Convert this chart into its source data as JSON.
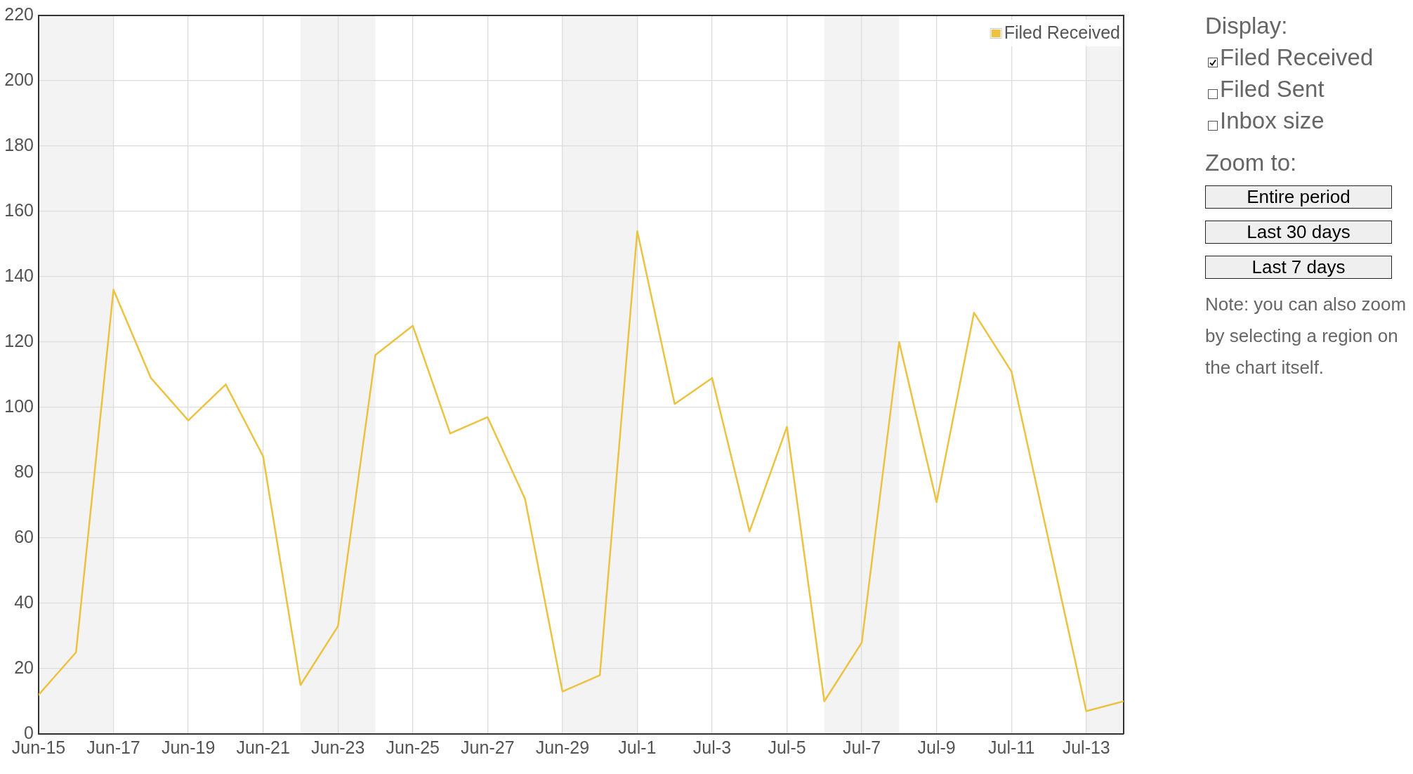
{
  "chart_data": [
    {
      "type": "line",
      "x": [
        "--06-15",
        "--06-16",
        "--06-17",
        "--06-18",
        "--06-19",
        "--06-20",
        "--06-21",
        "--06-22",
        "--06-23",
        "--06-24",
        "--06-25",
        "--06-26",
        "--06-27",
        "--06-28",
        "--06-29",
        "--06-30",
        "--07-01",
        "--07-02",
        "--07-03",
        "--07-04",
        "--07-05",
        "--07-06",
        "--07-07",
        "--07-08",
        "--07-09",
        "--07-10",
        "--07-11",
        "--07-12",
        "--07-13",
        "--07-14"
      ],
      "series": [
        {
          "name": "Filed Received",
          "color": "#edc240",
          "values": [
            12,
            25,
            136,
            109,
            96,
            107,
            85,
            15,
            33,
            116,
            125,
            92,
            97,
            72,
            13,
            18,
            154,
            101,
            109,
            62,
            94,
            10,
            28,
            120,
            71,
            129,
            111,
            59,
            7,
            10
          ]
        }
      ],
      "xlim": [
        "--06-15",
        "--07-14"
      ],
      "xticks": [
        {
          "value": "--06-15",
          "label": "Jun-15"
        },
        {
          "value": "--06-17",
          "label": "Jun-17"
        },
        {
          "value": "--06-19",
          "label": "Jun-19"
        },
        {
          "value": "--06-21",
          "label": "Jun-21"
        },
        {
          "value": "--06-23",
          "label": "Jun-23"
        },
        {
          "value": "--06-25",
          "label": "Jun-25"
        },
        {
          "value": "--06-27",
          "label": "Jun-27"
        },
        {
          "value": "--06-29",
          "label": "Jun-29"
        },
        {
          "value": "--07-01",
          "label": "Jul-1"
        },
        {
          "value": "--07-03",
          "label": "Jul-3"
        },
        {
          "value": "--07-05",
          "label": "Jul-5"
        },
        {
          "value": "--07-07",
          "label": "Jul-7"
        },
        {
          "value": "--07-09",
          "label": "Jul-9"
        },
        {
          "value": "--07-11",
          "label": "Jul-11"
        },
        {
          "value": "--07-13",
          "label": "Jul-13"
        }
      ],
      "ylim": [
        0,
        220
      ],
      "yticks": [
        0,
        20,
        40,
        60,
        80,
        100,
        120,
        140,
        160,
        180,
        200,
        220
      ],
      "grid": true,
      "legend": "top right",
      "line_style": "solid",
      "bands": [
        {
          "axis": "x",
          "from": "--06-15",
          "to": "--06-17",
          "color": "#f3f3f3"
        },
        {
          "axis": "x",
          "from": "--06-22",
          "to": "--06-24",
          "color": "#f3f3f3"
        },
        {
          "axis": "x",
          "from": "--06-29",
          "to": "--07-01",
          "color": "#f3f3f3"
        },
        {
          "axis": "x",
          "from": "--07-06",
          "to": "--07-08",
          "color": "#f3f3f3"
        },
        {
          "axis": "x",
          "from": "--07-13",
          "to": "--07-14",
          "color": "#f3f3f3"
        }
      ]
    },
    {
      "type": "other",
      "annotations": [
        "Display:",
        "Filed Received",
        "Filed Sent",
        "Inbox size",
        "Zoom to:",
        "Entire period",
        "Last 30 days",
        "Last 7 days",
        "Note: you can also zoom by selecting a region on the chart itself."
      ]
    }
  ]
}
